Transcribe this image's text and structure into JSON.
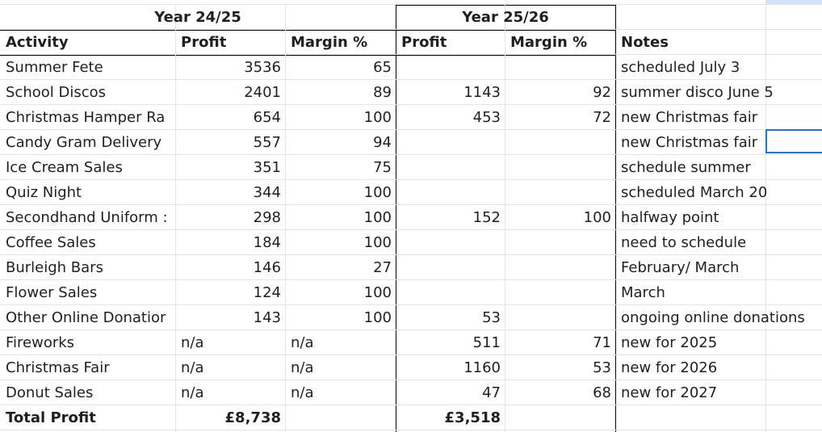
{
  "headers": {
    "year_a": "Year 24/25",
    "year_b": "Year 25/26",
    "activity": "Activity",
    "profit_a": "Profit",
    "margin_a": "Margin %",
    "profit_b": "Profit",
    "margin_b": "Margin %",
    "notes": "Notes"
  },
  "rows": [
    {
      "activity": "Summer Fete",
      "profit_a": "3536",
      "margin_a": "65",
      "profit_b": "",
      "margin_b": "",
      "notes": "scheduled July 3"
    },
    {
      "activity": "School Discos",
      "profit_a": "2401",
      "margin_a": "89",
      "profit_b": "1143",
      "margin_b": "92",
      "notes": "summer disco June 5"
    },
    {
      "activity": "Christmas Hamper Ra",
      "profit_a": "654",
      "margin_a": "100",
      "profit_b": "453",
      "margin_b": "72",
      "notes": "new Christmas fair"
    },
    {
      "activity": "Candy Gram Delivery",
      "profit_a": "557",
      "margin_a": "94",
      "profit_b": "",
      "margin_b": "",
      "notes": "new Christmas fair"
    },
    {
      "activity": "Ice Cream Sales",
      "profit_a": "351",
      "margin_a": "75",
      "profit_b": "",
      "margin_b": "",
      "notes": "schedule summer"
    },
    {
      "activity": "Quiz Night",
      "profit_a": "344",
      "margin_a": "100",
      "profit_b": "",
      "margin_b": "",
      "notes": "scheduled March 20"
    },
    {
      "activity": "Secondhand Uniform :",
      "profit_a": "298",
      "margin_a": "100",
      "profit_b": "152",
      "margin_b": "100",
      "notes": "halfway point"
    },
    {
      "activity": "Coffee Sales",
      "profit_a": "184",
      "margin_a": "100",
      "profit_b": "",
      "margin_b": "",
      "notes": "need to schedule"
    },
    {
      "activity": "Burleigh Bars",
      "profit_a": "146",
      "margin_a": "27",
      "profit_b": "",
      "margin_b": "",
      "notes": "February/ March"
    },
    {
      "activity": "Flower Sales",
      "profit_a": "124",
      "margin_a": "100",
      "profit_b": "",
      "margin_b": "",
      "notes": "March"
    },
    {
      "activity": "Other Online Donatior",
      "profit_a": "143",
      "margin_a": "100",
      "profit_b": "53",
      "margin_b": "",
      "notes": "ongoing online donations"
    },
    {
      "activity": "Fireworks",
      "profit_a": "n/a",
      "margin_a": "n/a",
      "profit_b": "511",
      "margin_b": "71",
      "notes": "new for 2025"
    },
    {
      "activity": "Christmas Fair",
      "profit_a": "n/a",
      "margin_a": "n/a",
      "profit_b": "1160",
      "margin_b": "53",
      "notes": "new for 2026"
    },
    {
      "activity": "Donut Sales",
      "profit_a": "n/a",
      "margin_a": "n/a",
      "profit_b": "47",
      "margin_b": "68",
      "notes": "new for 2027"
    }
  ],
  "total": {
    "label": "Total Profit",
    "profit_a": "£8,738",
    "profit_b": "£3,518"
  }
}
